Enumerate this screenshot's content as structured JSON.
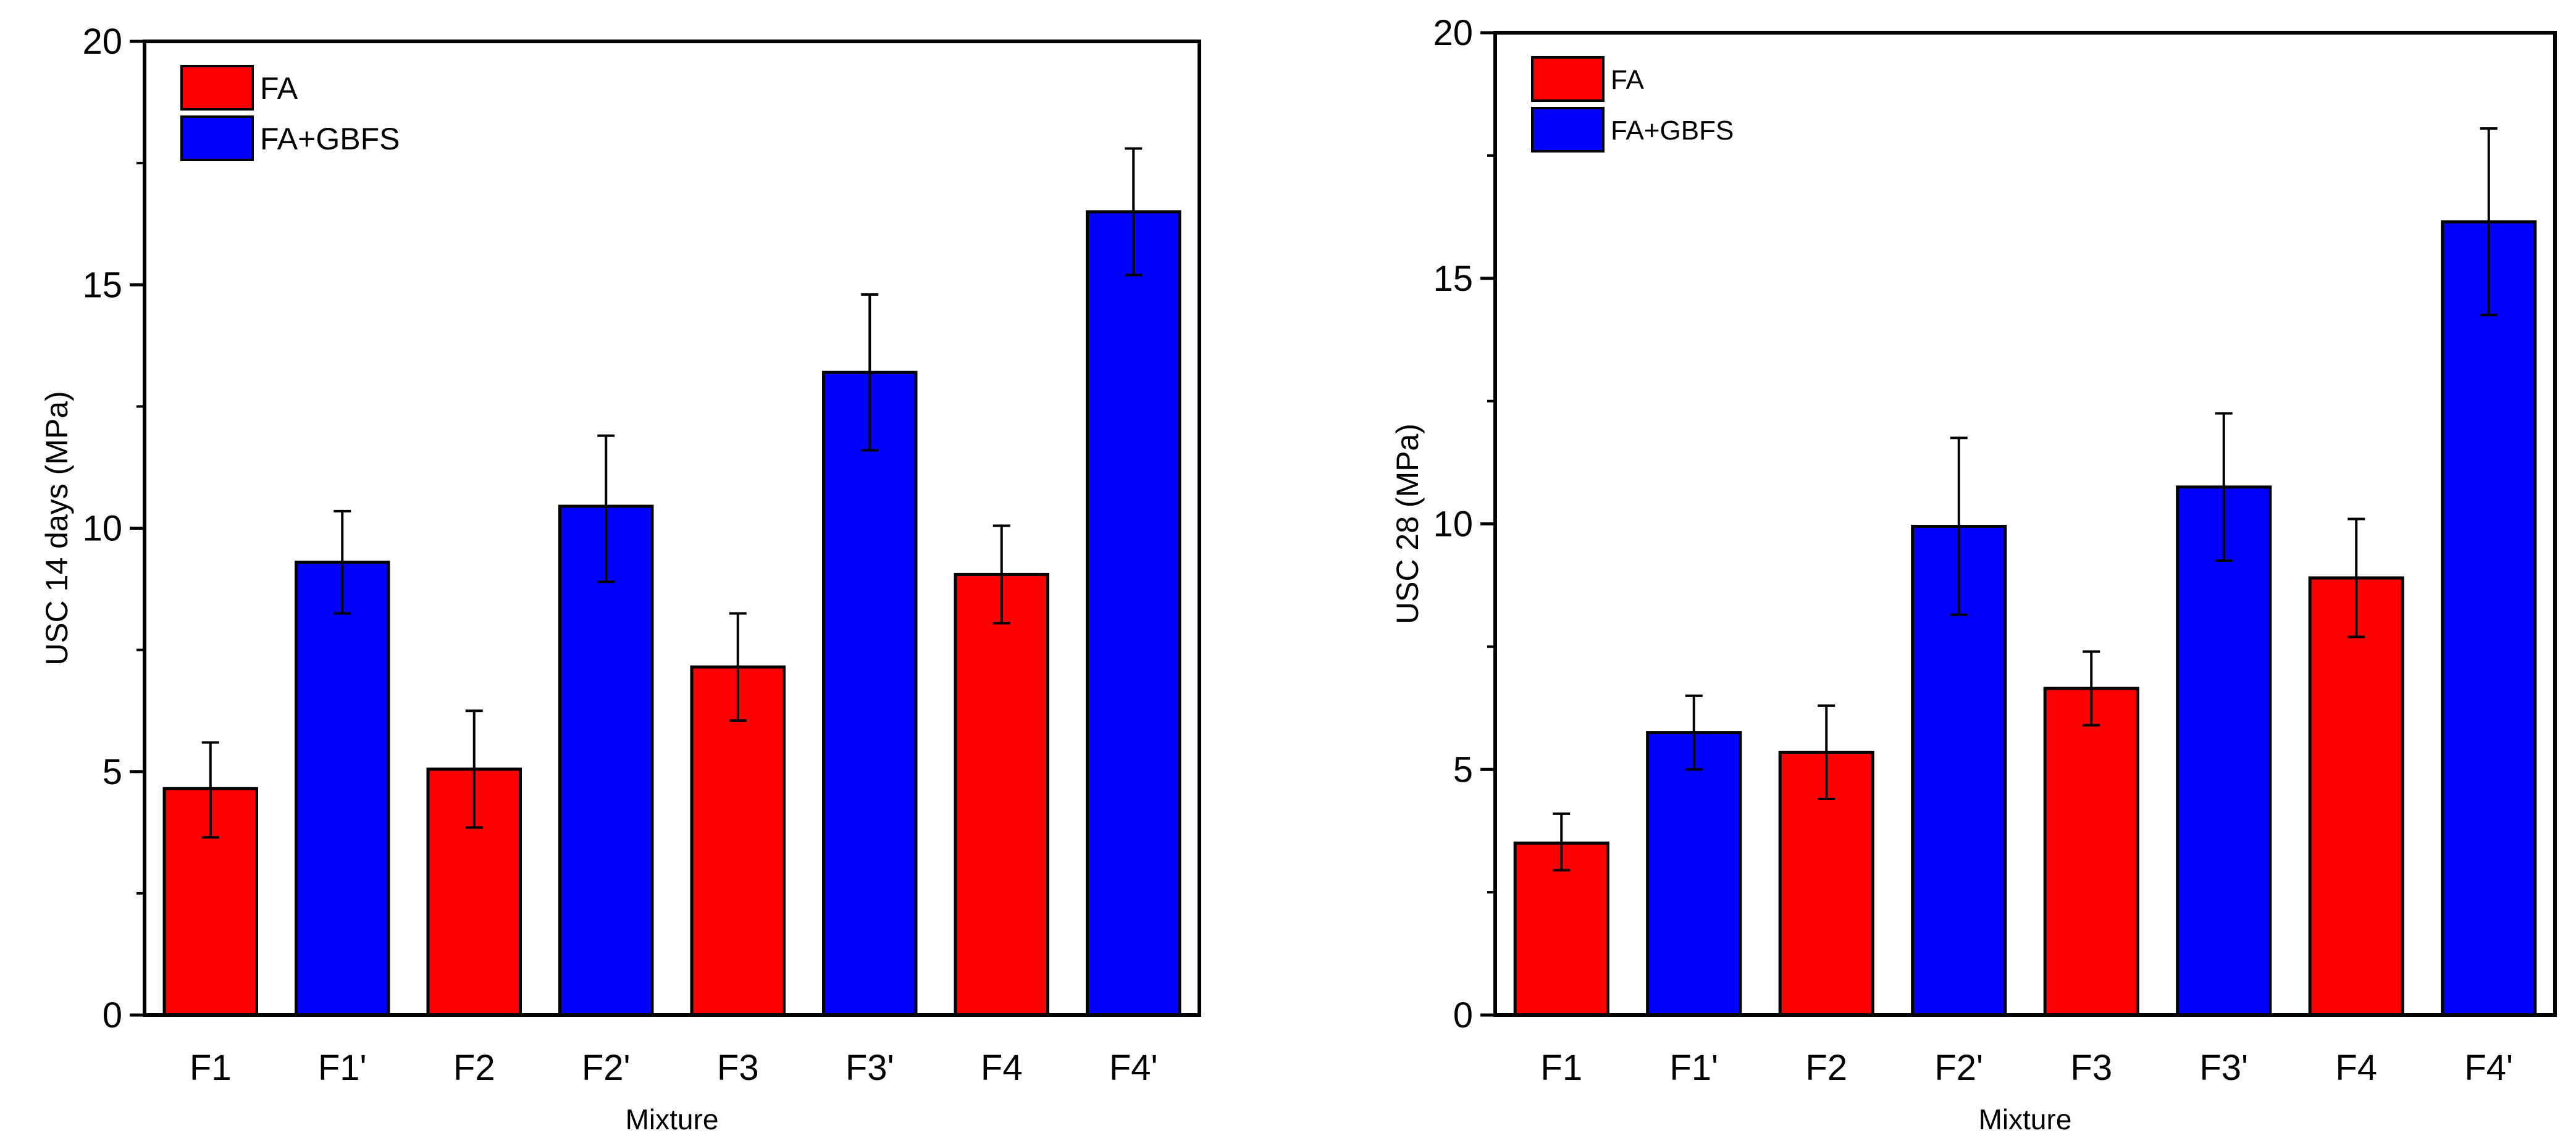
{
  "colors": {
    "FA": "#ff0000",
    "FA+GBFS": "#0000ff",
    "axis": "#000000"
  },
  "chart_data": [
    {
      "type": "bar",
      "title": "",
      "xlabel": "Mixture",
      "ylabel": "USC 14 days (MPa)",
      "ylim": [
        0,
        20
      ],
      "yticks": [
        0,
        5,
        10,
        15,
        20
      ],
      "categories": [
        "F1",
        "F1'",
        "F2",
        "F2'",
        "F3",
        "F3'",
        "F4",
        "F4'"
      ],
      "series_of_category": [
        "FA",
        "FA+GBFS",
        "FA",
        "FA+GBFS",
        "FA",
        "FA+GBFS",
        "FA",
        "FA+GBFS"
      ],
      "values": [
        4.65,
        9.3,
        5.05,
        10.45,
        7.15,
        13.2,
        9.05,
        16.5
      ],
      "error_low": [
        3.65,
        8.25,
        3.85,
        8.9,
        6.05,
        11.6,
        8.05,
        15.2
      ],
      "error_high": [
        5.6,
        10.35,
        6.25,
        11.9,
        8.25,
        14.8,
        10.05,
        17.8
      ],
      "legend": [
        "FA",
        "FA+GBFS"
      ],
      "legend_position": "top-left"
    },
    {
      "type": "bar",
      "title": "",
      "xlabel": "Mixture",
      "ylabel": "USC 28 (MPa)",
      "ylim": [
        0,
        20
      ],
      "yticks": [
        0,
        5,
        10,
        15,
        20
      ],
      "categories": [
        "F1",
        "F1'",
        "F2",
        "F2'",
        "F3",
        "F3'",
        "F4",
        "F4'"
      ],
      "series_of_category": [
        "FA",
        "FA+GBFS",
        "FA",
        "FA+GBFS",
        "FA",
        "FA+GBFS",
        "FA",
        "FA+GBFS"
      ],
      "values": [
        3.5,
        5.75,
        5.35,
        9.95,
        6.65,
        10.75,
        8.9,
        16.15
      ],
      "error_low": [
        2.95,
        5.0,
        4.4,
        8.15,
        5.9,
        9.25,
        7.7,
        14.25
      ],
      "error_high": [
        4.1,
        6.5,
        6.3,
        11.75,
        7.4,
        12.25,
        10.1,
        18.05
      ],
      "legend": [
        "FA",
        "FA+GBFS"
      ],
      "legend_position": "top-left"
    }
  ]
}
